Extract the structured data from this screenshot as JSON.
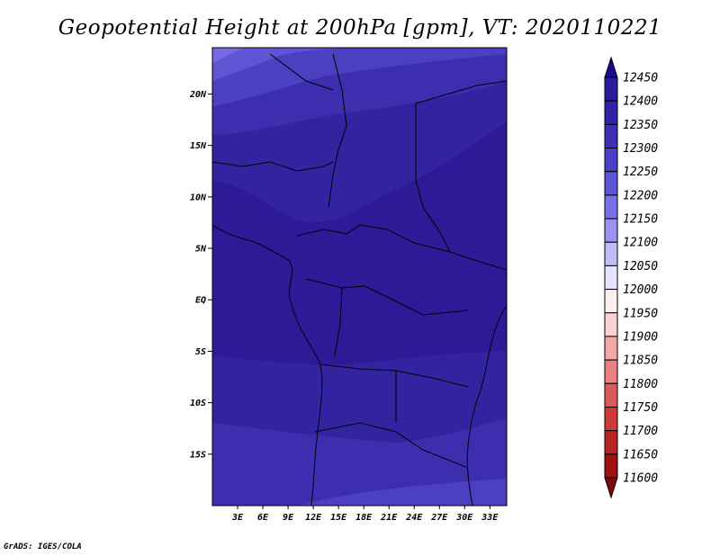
{
  "title": "Geopotential Height at 200hPa [gpm], VT: 2020110221",
  "credit": "GrADS: IGES/COLA",
  "map": {
    "lon_range": [
      0,
      35
    ],
    "lat_range": [
      -20,
      24.5
    ],
    "lat_ticks": [
      {
        "value": 20,
        "label": "20N"
      },
      {
        "value": 15,
        "label": "15N"
      },
      {
        "value": 10,
        "label": "10N"
      },
      {
        "value": 5,
        "label": "5N"
      },
      {
        "value": 0,
        "label": "EQ"
      },
      {
        "value": -5,
        "label": "5S"
      },
      {
        "value": -10,
        "label": "10S"
      },
      {
        "value": -15,
        "label": "15S"
      }
    ],
    "lon_ticks": [
      {
        "value": 3,
        "label": "3E"
      },
      {
        "value": 6,
        "label": "6E"
      },
      {
        "value": 9,
        "label": "9E"
      },
      {
        "value": 12,
        "label": "12E"
      },
      {
        "value": 15,
        "label": "15E"
      },
      {
        "value": 18,
        "label": "18E"
      },
      {
        "value": 21,
        "label": "21E"
      },
      {
        "value": 24,
        "label": "24E"
      },
      {
        "value": 27,
        "label": "27E"
      },
      {
        "value": 30,
        "label": "30E"
      },
      {
        "value": 33,
        "label": "33E"
      }
    ]
  },
  "colorbar": {
    "levels": [
      12450,
      12400,
      12350,
      12300,
      12250,
      12200,
      12150,
      12100,
      12050,
      12000,
      11950,
      11900,
      11850,
      11800,
      11750,
      11700,
      11650,
      11600
    ],
    "labels": [
      "12450",
      "12400",
      "12350",
      "12300",
      "12250",
      "12200",
      "12150",
      "12100",
      "12050",
      "12000",
      "11950",
      "11900",
      "11850",
      "11800",
      "11750",
      "11700",
      "11650",
      "11600"
    ],
    "colors": [
      "#1e0a8c",
      "#2a1a9c",
      "#3322a8",
      "#3d2fb8",
      "#4a40c8",
      "#5c56d8",
      "#7770e6",
      "#9a94f0",
      "#c0bcf8",
      "#e6e4fc",
      "#fff0f0",
      "#fcd2d2",
      "#f5a8a8",
      "#ea8080",
      "#de5a5a",
      "#cf3a3a",
      "#b82424",
      "#9e1212",
      "#7c0a0a"
    ]
  },
  "field_colors": {
    "deep": "#2e1a96",
    "band1": "#3423a0",
    "band2": "#3d2eb0",
    "band3": "#4b40c2",
    "band4": "#5e55d4",
    "band5": "#7669e2"
  }
}
